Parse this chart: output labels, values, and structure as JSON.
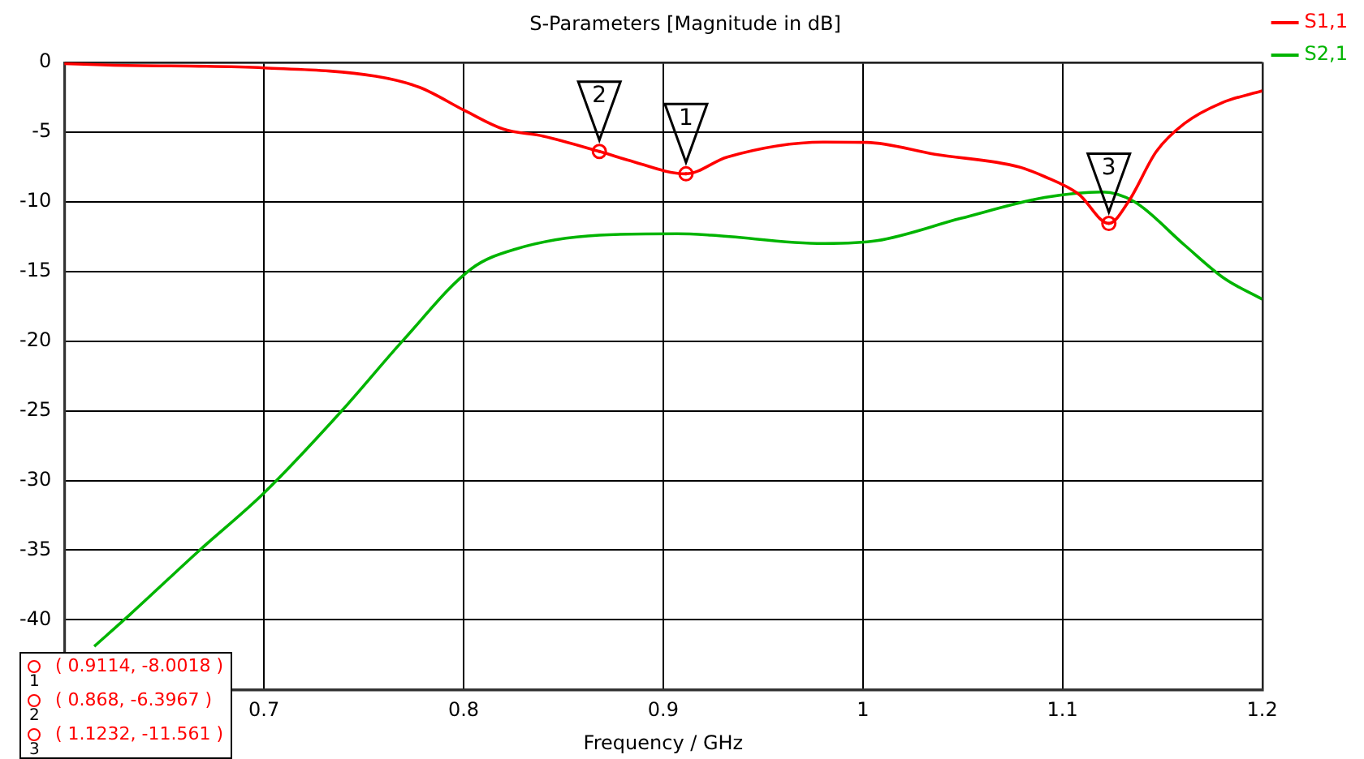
{
  "chart_data": {
    "type": "line",
    "title": "S-Parameters [Magnitude in dB]",
    "xlabel": "Frequency / GHz",
    "xlim": [
      0.6,
      1.2
    ],
    "xticks": [
      {
        "value": 0.6,
        "label": null
      },
      0.7,
      0.8,
      0.9,
      1,
      1.1,
      1.2
    ],
    "ylim": [
      -45,
      0
    ],
    "yticks": [
      {
        "value": -45,
        "label": null
      },
      -40,
      -35,
      -30,
      -25,
      -20,
      -15,
      -10,
      -5,
      0
    ],
    "grid": true,
    "legend": "right",
    "line_style": "solid",
    "series": [
      {
        "name": "S1,1",
        "color": "#ff0000",
        "x": [
          0.6,
          0.622,
          0.7,
          0.756,
          0.778,
          0.801,
          0.82,
          0.84,
          0.868,
          0.882,
          0.9114,
          0.932,
          0.98,
          1.002,
          1.036,
          1.078,
          1.091,
          1.108,
          1.1232,
          1.133,
          1.147,
          1.161,
          1.18,
          1.2
        ],
        "values": [
          -0.1,
          -0.2,
          -0.4,
          -1.0,
          -1.8,
          -3.5,
          -4.8,
          -5.3,
          -6.3967,
          -7.0,
          -8.0018,
          -6.8,
          -5.73,
          -5.75,
          -6.6,
          -7.5,
          -8.2,
          -9.45,
          -11.561,
          -10.0,
          -6.4,
          -4.4,
          -2.9,
          -2.05
        ]
      },
      {
        "name": "S2,1",
        "color": "#00b400",
        "x": [
          0.615,
          0.633,
          0.667,
          0.7,
          0.739,
          0.77,
          0.804,
          0.826,
          0.868,
          0.907,
          0.924,
          0.98,
          1.007,
          1.049,
          1.091,
          1.12,
          1.136,
          1.161,
          1.181,
          1.2
        ],
        "values": [
          -41.9,
          -39.6,
          -35.1,
          -30.9,
          -25,
          -19.9,
          -14.8,
          -13.4,
          -12.4,
          -12.3,
          -12.4,
          -13.0,
          -12.8,
          -11.2,
          -9.7,
          -9.3,
          -10.0,
          -13.1,
          -15.5,
          -17.0
        ]
      }
    ],
    "annotations": [
      {
        "text": "1",
        "x": 0.9114,
        "y": -8.0018
      },
      {
        "text": "2",
        "x": 0.868,
        "y": -6.3967
      },
      {
        "text": "3",
        "x": 1.1232,
        "y": -11.561
      },
      "( 0.9114, -8.0018 )",
      "( 0.868, -6.3967 )",
      "( 1.1232, -11.561 )"
    ]
  }
}
